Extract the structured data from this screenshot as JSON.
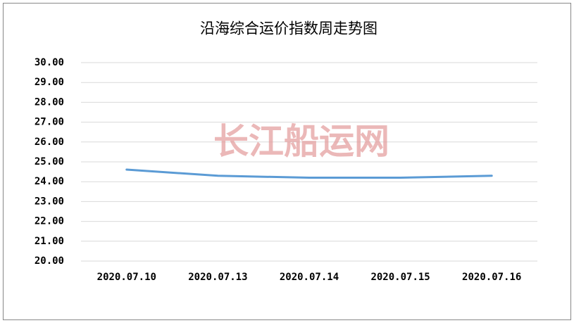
{
  "chart_data": {
    "type": "line",
    "title": "沿海综合运价指数周走势图",
    "annotation": "长江船运网",
    "categories": [
      "2020.07.10",
      "2020.07.13",
      "2020.07.14",
      "2020.07.15",
      "2020.07.16"
    ],
    "values": [
      24.61,
      24.3,
      24.2,
      24.2,
      24.3
    ],
    "color": "#5b9bd5",
    "ylim": [
      20,
      30
    ],
    "yticks": [
      {
        "value": 20,
        "label": "20.00"
      },
      {
        "value": 21,
        "label": "21.00"
      },
      {
        "value": 22,
        "label": "22.00"
      },
      {
        "value": 23,
        "label": "23.00"
      },
      {
        "value": 24,
        "label": "24.00"
      },
      {
        "value": 25,
        "label": "25.00"
      },
      {
        "value": 26,
        "label": "26.00"
      },
      {
        "value": 27,
        "label": "27.00"
      },
      {
        "value": 28,
        "label": "28.00"
      },
      {
        "value": 29,
        "label": "29.00"
      },
      {
        "value": 30,
        "label": "30.00"
      }
    ],
    "grid": true
  }
}
